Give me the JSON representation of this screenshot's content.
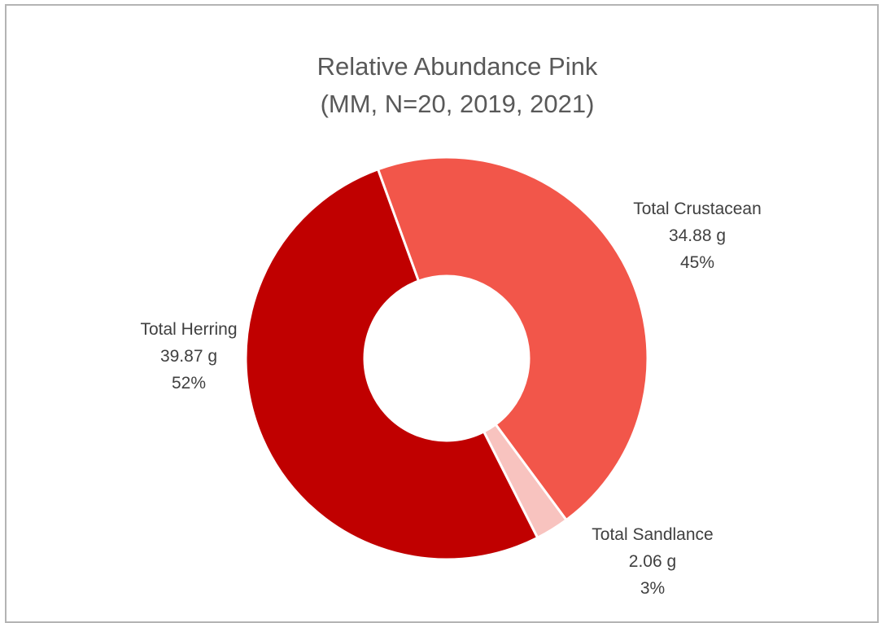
{
  "chart_data": {
    "type": "pie",
    "variant": "doughnut",
    "title_lines": [
      "Relative Abundance Pink",
      "(MM, N=20, 2019, 2021)"
    ],
    "legend": "none",
    "slices": [
      {
        "name": "Total Crustacean",
        "value": 34.88,
        "value_label": "34.88 g",
        "percent_label": "45%",
        "color": "#f2564a"
      },
      {
        "name": "Total Sandlance",
        "value": 2.06,
        "value_label": "2.06 g",
        "percent_label": "3%",
        "color": "#f8c3bf"
      },
      {
        "name": "Total Herring",
        "value": 39.87,
        "value_label": "39.87 g",
        "percent_label": "52%",
        "color": "#c00000"
      }
    ]
  }
}
